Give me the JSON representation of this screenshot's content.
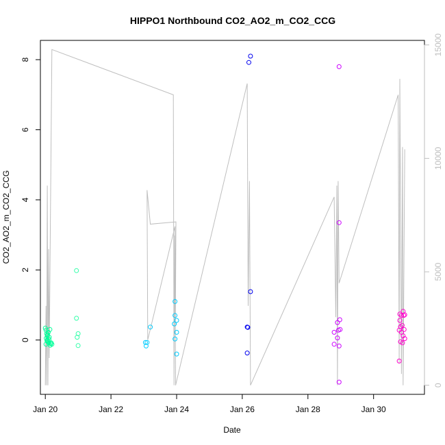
{
  "chart_data": {
    "type": "scatter",
    "title": "HIPPO1 Northbound CO2_AO2_m_CO2_CCG",
    "xlabel": "Date",
    "ylabel": "CO2_AO2_m_CO2_CCG",
    "x_unit": "days",
    "xlim": [
      19.85,
      31.55
    ],
    "ylim": [
      -1.55,
      8.55
    ],
    "x_ticks": [
      {
        "value": 20,
        "label": "Jan 20"
      },
      {
        "value": 22,
        "label": "Jan 22"
      },
      {
        "value": 24,
        "label": "Jan 24"
      },
      {
        "value": 26,
        "label": "Jan 26"
      },
      {
        "value": 28,
        "label": "Jan 28"
      },
      {
        "value": 30,
        "label": "Jan 30"
      }
    ],
    "y_ticks": [
      0,
      2,
      4,
      6,
      8
    ],
    "y2_ticks": [
      0,
      5000,
      10000,
      15000
    ],
    "y2lim": [
      -400,
      15200
    ],
    "y2_color": "#bebebe",
    "line_color": "#bebebe",
    "grid": false,
    "legend": "none",
    "series": [
      {
        "color": "#00ff99",
        "points": [
          [
            20.0,
            0.34
          ],
          [
            20.02,
            0.28
          ],
          [
            20.04,
            0.18
          ],
          [
            20.06,
            0.12
          ],
          [
            20.03,
            0.05
          ],
          [
            20.05,
            -0.02
          ],
          [
            20.08,
            -0.05
          ],
          [
            20.1,
            -0.08
          ],
          [
            20.02,
            -0.12
          ],
          [
            20.06,
            0.0
          ],
          [
            20.12,
            0.08
          ],
          [
            20.14,
            0.3
          ],
          [
            20.09,
            0.22
          ],
          [
            20.16,
            -0.1
          ],
          [
            20.2,
            -0.12
          ],
          [
            20.18,
            -0.08
          ],
          [
            20.07,
            0.15
          ],
          [
            20.11,
            0.02
          ],
          [
            20.15,
            -0.15
          ]
        ]
      },
      {
        "color": "#33ffaa",
        "points": [
          [
            20.95,
            1.98
          ],
          [
            20.95,
            0.62
          ],
          [
            21.0,
            0.18
          ],
          [
            20.97,
            0.08
          ],
          [
            21.0,
            -0.16
          ]
        ]
      },
      {
        "color": "#00ccff",
        "points": [
          [
            23.05,
            -0.07
          ],
          [
            23.1,
            -0.07
          ],
          [
            23.07,
            -0.17
          ],
          [
            23.2,
            0.37
          ],
          [
            23.95,
            1.1
          ],
          [
            23.95,
            0.7
          ],
          [
            24.0,
            0.56
          ],
          [
            23.93,
            0.46
          ],
          [
            24.0,
            0.22
          ],
          [
            23.95,
            0.03
          ],
          [
            24.0,
            -0.4
          ]
        ]
      },
      {
        "color": "#0000ee",
        "points": [
          [
            26.25,
            8.1
          ],
          [
            26.2,
            7.92
          ],
          [
            26.25,
            1.38
          ],
          [
            26.15,
            0.37
          ],
          [
            26.17,
            0.36
          ],
          [
            26.15,
            -0.37
          ]
        ]
      },
      {
        "color": "#cc00ff",
        "points": [
          [
            28.95,
            7.8
          ],
          [
            28.95,
            3.35
          ],
          [
            28.97,
            0.58
          ],
          [
            28.9,
            0.5
          ],
          [
            28.98,
            0.3
          ],
          [
            28.93,
            0.28
          ],
          [
            28.8,
            0.22
          ],
          [
            28.9,
            0.06
          ],
          [
            28.8,
            -0.12
          ],
          [
            28.95,
            -0.17
          ],
          [
            28.95,
            -1.2
          ]
        ]
      },
      {
        "color": "#ff00cc",
        "points": [
          [
            30.8,
            0.74
          ],
          [
            30.85,
            0.7
          ],
          [
            30.9,
            0.82
          ],
          [
            30.92,
            0.7
          ],
          [
            30.95,
            0.72
          ],
          [
            30.8,
            0.56
          ],
          [
            30.87,
            0.42
          ],
          [
            30.82,
            0.38
          ],
          [
            30.93,
            0.3
          ],
          [
            30.78,
            0.28
          ],
          [
            30.85,
            0.22
          ],
          [
            30.9,
            0.12
          ],
          [
            30.95,
            0.04
          ],
          [
            30.82,
            -0.05
          ],
          [
            30.88,
            -0.08
          ],
          [
            30.78,
            -0.6
          ]
        ]
      }
    ],
    "altitude_line": [
      [
        20.0,
        0
      ],
      [
        20.02,
        3500
      ],
      [
        20.04,
        0
      ],
      [
        20.06,
        8800
      ],
      [
        20.08,
        0
      ],
      [
        20.1,
        6000
      ],
      [
        20.12,
        1200
      ],
      [
        20.15,
        6500
      ],
      [
        20.2,
        14800
      ],
      [
        23.9,
        12800
      ],
      [
        23.92,
        0
      ],
      [
        23.94,
        6600
      ],
      [
        23.96,
        2100
      ],
      [
        23.98,
        7200
      ],
      [
        23.2,
        7100
      ],
      [
        23.1,
        8600
      ],
      [
        23.12,
        2000
      ],
      [
        23.95,
        7000
      ],
      [
        23.97,
        0
      ],
      [
        26.15,
        13300
      ],
      [
        26.18,
        3500
      ],
      [
        26.22,
        9000
      ],
      [
        26.25,
        0
      ],
      [
        28.8,
        8300
      ],
      [
        28.85,
        3000
      ],
      [
        28.88,
        8800
      ],
      [
        28.9,
        0
      ],
      [
        28.92,
        9000
      ],
      [
        28.95,
        4500
      ],
      [
        30.75,
        12800
      ],
      [
        30.78,
        1000
      ],
      [
        30.8,
        13500
      ],
      [
        30.85,
        500
      ],
      [
        30.88,
        10500
      ],
      [
        30.9,
        0
      ],
      [
        30.95,
        10400
      ]
    ]
  }
}
